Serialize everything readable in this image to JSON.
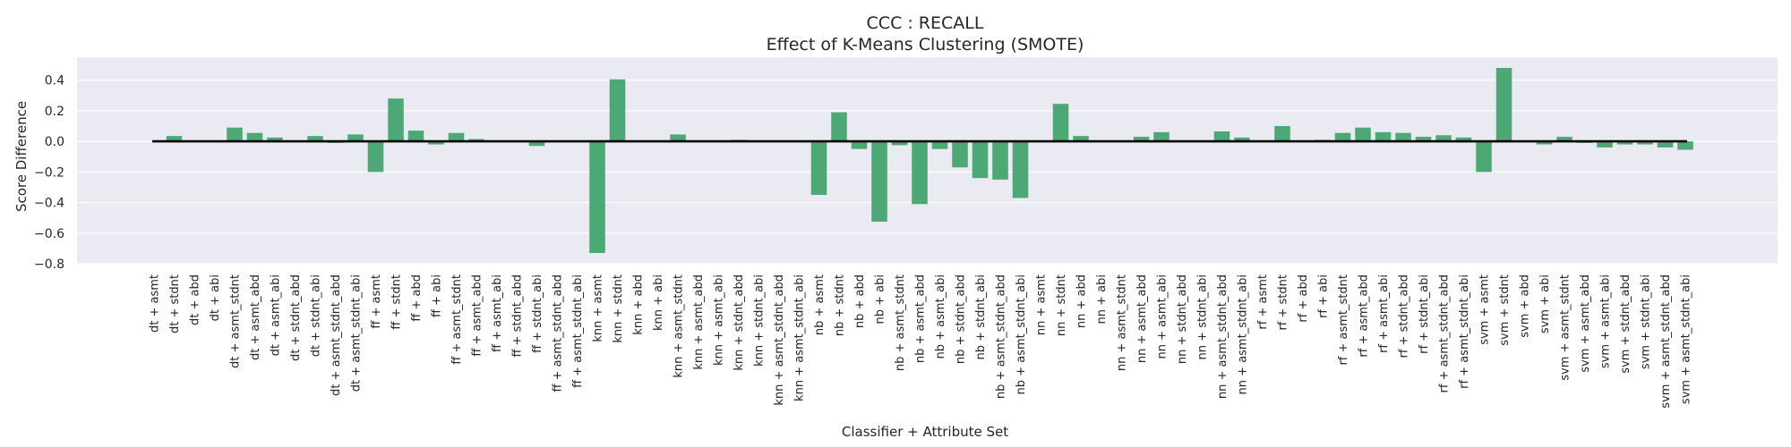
{
  "chart_data": {
    "type": "bar",
    "title": "CCC : RECALL",
    "subtitle": "Effect of K-Means Clustering (SMOTE)",
    "xlabel": "Classifier + Attribute Set",
    "ylabel": "Score Difference",
    "ylim": [
      -0.8,
      0.55
    ],
    "yticks": [
      -0.8,
      -0.6,
      -0.4,
      -0.2,
      0.0,
      0.2,
      0.4
    ],
    "ytick_labels": [
      "−0.8",
      "−0.6",
      "−0.4",
      "−0.2",
      "0.0",
      "0.2",
      "0.4"
    ],
    "grid": true,
    "bar_color": "#4ca874",
    "background_color": "#eaeaf2",
    "categories": [
      "dt + asmt",
      "dt + stdnt",
      "dt + abd",
      "dt + abi",
      "dt + asmt_stdnt",
      "dt + asmt_abd",
      "dt + asmt_abi",
      "dt + stdnt_abd",
      "dt + stdnt_abi",
      "dt + asmt_stdnt_abd",
      "dt + asmt_stdnt_abi",
      "ff + asmt",
      "ff + stdnt",
      "ff + abd",
      "ff + abi",
      "ff + asmt_stdnt",
      "ff + asmt_abd",
      "ff + asmt_abi",
      "ff + stdnt_abd",
      "ff + stdnt_abi",
      "ff + asmt_stdnt_abd",
      "ff + asmt_stdnt_abi",
      "knn + asmt",
      "knn + stdnt",
      "knn + abd",
      "knn + abi",
      "knn + asmt_stdnt",
      "knn + asmt_abd",
      "knn + asmt_abi",
      "knn + stdnt_abd",
      "knn + stdnt_abi",
      "knn + asmt_stdnt_abd",
      "knn + asmt_stdnt_abi",
      "nb + asmt",
      "nb + stdnt",
      "nb + abd",
      "nb + abi",
      "nb + asmt_stdnt",
      "nb + asmt_abd",
      "nb + asmt_abi",
      "nb + stdnt_abd",
      "nb + stdnt_abi",
      "nb + asmt_stdnt_abd",
      "nb + asmt_stdnt_abi",
      "nn + asmt",
      "nn + stdnt",
      "nn + abd",
      "nn + abi",
      "nn + asmt_stdnt",
      "nn + asmt_abd",
      "nn + asmt_abi",
      "nn + stdnt_abd",
      "nn + stdnt_abi",
      "nn + asmt_stdnt_abd",
      "nn + asmt_stdnt_abi",
      "rf + asmt",
      "rf + stdnt",
      "rf + abd",
      "rf + abi",
      "rf + asmt_stdnt",
      "rf + asmt_abd",
      "rf + asmt_abi",
      "rf + stdnt_abd",
      "rf + stdnt_abi",
      "rf + asmt_stdnt_abd",
      "rf + asmt_stdnt_abi",
      "svm + asmt",
      "svm + stdnt",
      "svm + abd",
      "svm + abi",
      "svm + asmt_stdnt",
      "svm + asmt_abd",
      "svm + asmt_abi",
      "svm + stdnt_abd",
      "svm + stdnt_abi",
      "svm + asmt_stdnt_abd",
      "svm + asmt_stdnt_abi"
    ],
    "values": [
      0.0,
      0.035,
      0.0,
      0.0,
      0.09,
      0.055,
      0.025,
      0.0,
      0.035,
      -0.01,
      0.045,
      -0.2,
      0.28,
      0.07,
      -0.02,
      0.055,
      0.015,
      0.0,
      0.0,
      -0.03,
      0.0,
      0.0,
      -0.73,
      0.405,
      0.0,
      0.0,
      0.045,
      0.0,
      0.0,
      0.01,
      0.0,
      0.0,
      0.0,
      -0.35,
      0.19,
      -0.05,
      -0.525,
      -0.025,
      -0.41,
      -0.05,
      -0.17,
      -0.24,
      -0.25,
      -0.37,
      0.0,
      0.245,
      0.035,
      0.0,
      0.0,
      0.03,
      0.06,
      0.0,
      0.0,
      0.065,
      0.025,
      0.0,
      0.1,
      0.0,
      0.01,
      0.055,
      0.09,
      0.06,
      0.055,
      0.03,
      0.04,
      0.025,
      -0.2,
      0.48,
      0.0,
      -0.02,
      0.03,
      -0.01,
      -0.04,
      -0.02,
      -0.02,
      -0.04,
      -0.055
    ]
  }
}
